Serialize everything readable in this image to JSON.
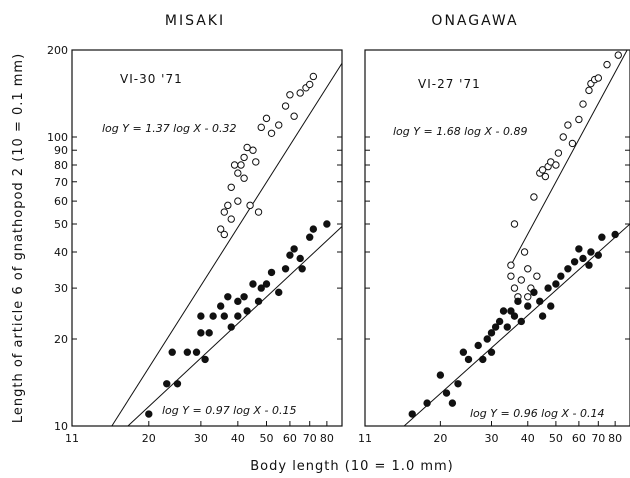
{
  "figure": {
    "ylabel": "Length of article 6 of gnathopod 2 (10 = 0.1 mm)",
    "xlabel": "Body  length (10 = 1.0 mm)"
  },
  "chart_data": [
    {
      "type": "scatter",
      "title": "MISAKI",
      "date": "VI-30 '71",
      "x_scale": "log",
      "y_scale": "log",
      "xlim": [
        11,
        90
      ],
      "ylim": [
        10,
        200
      ],
      "x_tick_labels": [
        "11",
        "20",
        "30",
        "40",
        "50",
        "60",
        "70",
        "80"
      ],
      "x_ticks": [
        11,
        20,
        30,
        40,
        50,
        60,
        70,
        80
      ],
      "y_tick_labels": [
        "10",
        "20",
        "30",
        "40",
        "50",
        "60",
        "70",
        "80",
        "90",
        "100",
        "200"
      ],
      "y_ticks": [
        10,
        20,
        30,
        40,
        50,
        60,
        70,
        80,
        90,
        100,
        200
      ],
      "grid": false,
      "series": [
        {
          "marker": "open-circle",
          "equation": "log Y = 1.37 log X - 0.32",
          "points": [
            [
              35,
              48
            ],
            [
              36,
              46
            ],
            [
              36,
              55
            ],
            [
              37,
              58
            ],
            [
              38,
              52
            ],
            [
              38,
              67
            ],
            [
              39,
              80
            ],
            [
              40,
              60
            ],
            [
              40,
              75
            ],
            [
              41,
              80
            ],
            [
              42,
              85
            ],
            [
              42,
              72
            ],
            [
              43,
              92
            ],
            [
              44,
              58
            ],
            [
              45,
              90
            ],
            [
              46,
              82
            ],
            [
              47,
              55
            ],
            [
              48,
              108
            ],
            [
              50,
              116
            ],
            [
              52,
              103
            ],
            [
              55,
              110
            ],
            [
              58,
              128
            ],
            [
              60,
              140
            ],
            [
              62,
              118
            ],
            [
              65,
              142
            ],
            [
              68,
              148
            ],
            [
              70,
              152
            ],
            [
              72,
              162
            ]
          ],
          "fit_line": [
            [
              15,
              10
            ],
            [
              90,
              180
            ]
          ]
        },
        {
          "marker": "filled-circle",
          "equation": "log Y = 0.97 log X - 0.15",
          "points": [
            [
              20,
              11
            ],
            [
              23,
              14
            ],
            [
              24,
              18
            ],
            [
              25,
              14
            ],
            [
              27,
              18
            ],
            [
              29,
              18
            ],
            [
              30,
              21
            ],
            [
              30,
              24
            ],
            [
              31,
              17
            ],
            [
              32,
              21
            ],
            [
              33,
              24
            ],
            [
              35,
              26
            ],
            [
              36,
              24
            ],
            [
              37,
              28
            ],
            [
              38,
              22
            ],
            [
              40,
              27
            ],
            [
              40,
              24
            ],
            [
              42,
              28
            ],
            [
              43,
              25
            ],
            [
              45,
              31
            ],
            [
              47,
              27
            ],
            [
              48,
              30
            ],
            [
              50,
              31
            ],
            [
              52,
              34
            ],
            [
              55,
              29
            ],
            [
              58,
              35
            ],
            [
              60,
              39
            ],
            [
              62,
              41
            ],
            [
              65,
              38
            ],
            [
              66,
              35
            ],
            [
              70,
              45
            ],
            [
              72,
              48
            ],
            [
              80,
              50
            ]
          ],
          "fit_line": [
            [
              17,
              10
            ],
            [
              90,
              49
            ]
          ]
        }
      ]
    },
    {
      "type": "scatter",
      "title": "ONAGAWA",
      "date": "VI-27 '71",
      "x_scale": "log",
      "y_scale": "log",
      "xlim": [
        11,
        90
      ],
      "ylim": [
        10,
        200
      ],
      "x_tick_labels": [
        "11",
        "20",
        "30",
        "40",
        "50",
        "60",
        "70",
        "80"
      ],
      "x_ticks": [
        11,
        20,
        30,
        40,
        50,
        60,
        70,
        80
      ],
      "y_tick_labels": [],
      "y_ticks": [
        10,
        20,
        30,
        40,
        50,
        60,
        70,
        80,
        90,
        100,
        200
      ],
      "grid": false,
      "series": [
        {
          "marker": "open-circle",
          "equation": "log Y = 1.68 log X - 0.89",
          "points": [
            [
              35,
              36
            ],
            [
              35,
              33
            ],
            [
              36,
              50
            ],
            [
              36,
              30
            ],
            [
              37,
              28
            ],
            [
              38,
              32
            ],
            [
              39,
              40
            ],
            [
              40,
              35
            ],
            [
              40,
              28
            ],
            [
              41,
              30
            ],
            [
              42,
              62
            ],
            [
              43,
              33
            ],
            [
              44,
              75
            ],
            [
              45,
              77
            ],
            [
              46,
              73
            ],
            [
              47,
              79
            ],
            [
              48,
              82
            ],
            [
              50,
              80
            ],
            [
              51,
              88
            ],
            [
              53,
              100
            ],
            [
              55,
              110
            ],
            [
              57,
              95
            ],
            [
              60,
              115
            ],
            [
              62,
              130
            ],
            [
              65,
              145
            ],
            [
              66,
              153
            ],
            [
              68,
              158
            ],
            [
              70,
              160
            ],
            [
              75,
              178
            ],
            [
              82,
              192
            ]
          ],
          "fit_line": [
            [
              35,
              36
            ],
            [
              88,
              200
            ]
          ]
        },
        {
          "marker": "filled-circle",
          "equation": "log Y = 0.96 log X - 0.14",
          "points": [
            [
              16,
              11
            ],
            [
              18,
              12
            ],
            [
              20,
              15
            ],
            [
              21,
              13
            ],
            [
              22,
              12
            ],
            [
              23,
              14
            ],
            [
              24,
              18
            ],
            [
              25,
              17
            ],
            [
              27,
              19
            ],
            [
              28,
              17
            ],
            [
              29,
              20
            ],
            [
              30,
              21
            ],
            [
              30,
              18
            ],
            [
              31,
              22
            ],
            [
              32,
              23
            ],
            [
              33,
              25
            ],
            [
              34,
              22
            ],
            [
              35,
              25
            ],
            [
              36,
              24
            ],
            [
              37,
              27
            ],
            [
              38,
              23
            ],
            [
              40,
              26
            ],
            [
              42,
              29
            ],
            [
              44,
              27
            ],
            [
              45,
              24
            ],
            [
              47,
              30
            ],
            [
              48,
              26
            ],
            [
              50,
              31
            ],
            [
              52,
              33
            ],
            [
              55,
              35
            ],
            [
              58,
              37
            ],
            [
              60,
              41
            ],
            [
              62,
              38
            ],
            [
              65,
              36
            ],
            [
              66,
              40
            ],
            [
              70,
              39
            ],
            [
              72,
              45
            ],
            [
              80,
              46
            ]
          ],
          "fit_line": [
            [
              15,
              10
            ],
            [
              90,
              50
            ]
          ]
        }
      ]
    }
  ],
  "colors": {
    "ink": "#111111",
    "background": "#ffffff"
  }
}
